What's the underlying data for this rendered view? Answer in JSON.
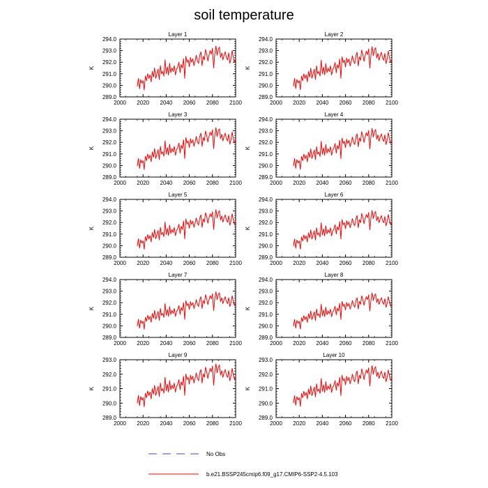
{
  "title": "soil temperature",
  "chart_data": {
    "type": "line",
    "ylabel": "K",
    "xlim": [
      2000,
      2100
    ],
    "xticks": [
      "2000",
      "2020",
      "2040",
      "2060",
      "2080",
      "2100"
    ],
    "x": [
      2015,
      2016,
      2017,
      2018,
      2019,
      2020,
      2021,
      2022,
      2023,
      2024,
      2025,
      2026,
      2027,
      2028,
      2029,
      2030,
      2031,
      2032,
      2033,
      2034,
      2035,
      2036,
      2037,
      2038,
      2039,
      2040,
      2041,
      2042,
      2043,
      2044,
      2045,
      2046,
      2047,
      2048,
      2049,
      2050,
      2051,
      2052,
      2053,
      2054,
      2055,
      2056,
      2057,
      2058,
      2059,
      2060,
      2061,
      2062,
      2063,
      2064,
      2065,
      2066,
      2067,
      2068,
      2069,
      2070,
      2071,
      2072,
      2073,
      2074,
      2075,
      2076,
      2077,
      2078,
      2079,
      2080,
      2081,
      2082,
      2083,
      2084,
      2085,
      2086,
      2087,
      2088,
      2089,
      2090,
      2091,
      2092,
      2093,
      2094,
      2095,
      2096,
      2097,
      2098,
      2099,
      2100
    ],
    "base_values": [
      289.9,
      290.6,
      289.7,
      290.5,
      290.2,
      290.4,
      289.6,
      290.8,
      290.4,
      291.0,
      290.6,
      290.9,
      290.3,
      291.2,
      290.7,
      291.5,
      290.6,
      291.0,
      291.4,
      290.5,
      291.7,
      291.0,
      291.2,
      290.8,
      292.2,
      291.0,
      291.6,
      290.9,
      291.9,
      291.1,
      291.5,
      291.2,
      291.7,
      290.9,
      291.4,
      291.6,
      292.0,
      291.1,
      291.8,
      291.5,
      292.3,
      290.6,
      292.5,
      292.0,
      292.2,
      291.6,
      292.4,
      292.0,
      292.3,
      291.7,
      292.1,
      292.6,
      292.1,
      291.9,
      292.6,
      292.9,
      291.7,
      292.5,
      292.2,
      293.1,
      292.7,
      292.1,
      292.6,
      293.0,
      292.7,
      293.2,
      291.5,
      292.7,
      293.4,
      292.6,
      293.1,
      293.3,
      292.4,
      292.8,
      292.2,
      292.6,
      292.9,
      292.4,
      292.2,
      292.8,
      291.9,
      292.3,
      293.0,
      292.4,
      292.0,
      292.3
    ],
    "panels": [
      {
        "title": "Layer 1",
        "offset": 0.0,
        "scale": 1.0,
        "ylim": [
          289.0,
          294.0
        ],
        "yticks": [
          "289.0",
          "290.0",
          "291.0",
          "292.0",
          "293.0",
          "294.0"
        ]
      },
      {
        "title": "Layer 2",
        "offset": -0.02,
        "scale": 0.98,
        "ylim": [
          289.0,
          294.0
        ],
        "yticks": [
          "289.0",
          "290.0",
          "291.0",
          "292.0",
          "293.0",
          "294.0"
        ]
      },
      {
        "title": "Layer 3",
        "offset": -0.05,
        "scale": 0.95,
        "ylim": [
          289.0,
          294.0
        ],
        "yticks": [
          "289.0",
          "290.0",
          "291.0",
          "292.0",
          "293.0",
          "294.0"
        ]
      },
      {
        "title": "Layer 4",
        "offset": -0.08,
        "scale": 0.93,
        "ylim": [
          289.0,
          294.0
        ],
        "yticks": [
          "289.0",
          "290.0",
          "291.0",
          "292.0",
          "293.0",
          "294.0"
        ]
      },
      {
        "title": "Layer 5",
        "offset": -0.12,
        "scale": 0.9,
        "ylim": [
          289.0,
          294.0
        ],
        "yticks": [
          "289.0",
          "290.0",
          "291.0",
          "292.0",
          "293.0",
          "294.0"
        ]
      },
      {
        "title": "Layer 6",
        "offset": -0.16,
        "scale": 0.88,
        "ylim": [
          289.0,
          294.0
        ],
        "yticks": [
          "289.0",
          "290.0",
          "291.0",
          "292.0",
          "293.0",
          "294.0"
        ]
      },
      {
        "title": "Layer 7",
        "offset": -0.21,
        "scale": 0.85,
        "ylim": [
          289.0,
          294.0
        ],
        "yticks": [
          "289.0",
          "290.0",
          "291.0",
          "292.0",
          "293.0",
          "294.0"
        ]
      },
      {
        "title": "Layer 8",
        "offset": -0.26,
        "scale": 0.82,
        "ylim": [
          289.0,
          294.0
        ],
        "yticks": [
          "289.0",
          "290.0",
          "291.0",
          "292.0",
          "293.0",
          "294.0"
        ]
      },
      {
        "title": "Layer 9",
        "offset": -0.32,
        "scale": 0.78,
        "ylim": [
          289.0,
          293.0
        ],
        "yticks": [
          "289.0",
          "290.0",
          "291.0",
          "292.0",
          "293.0"
        ]
      },
      {
        "title": "Layer 10",
        "offset": -0.38,
        "scale": 0.74,
        "ylim": [
          289.0,
          293.0
        ],
        "yticks": [
          "289.0",
          "290.0",
          "291.0",
          "292.0",
          "293.0"
        ]
      }
    ],
    "legend": [
      {
        "label": "No Obs",
        "style": "dashed",
        "color": "#4a3fb0"
      },
      {
        "label": "b.e21.BSSP245cmip6.f09_g17.CMIP6-SSP2-4.5.103",
        "style": "solid",
        "color": "#ff0000"
      }
    ],
    "series_color": "#ff0000"
  }
}
